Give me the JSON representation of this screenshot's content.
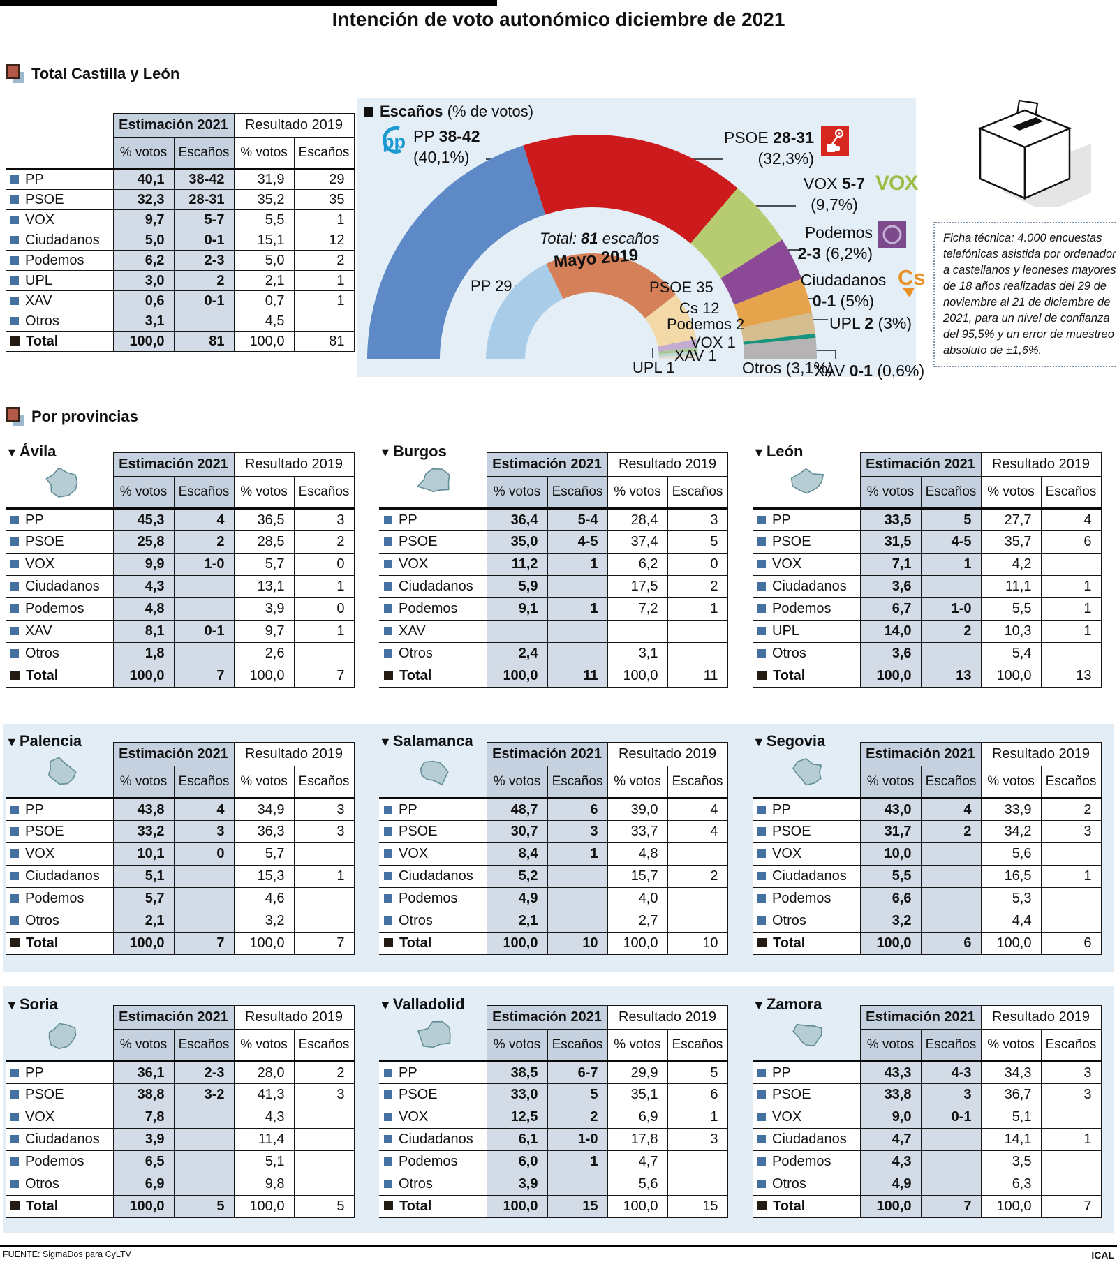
{
  "title": "Intención de voto autonómico diciembre de 2021",
  "sections": {
    "total_heading": "Total Castilla y León",
    "provinces_heading": "Por provincias"
  },
  "table_labels": {
    "est": "Estimación 2021",
    "res": "Resultado 2019",
    "votes": "% votos",
    "seats": "Escaños"
  },
  "total_table": {
    "rows": [
      [
        "PP",
        "40,1",
        "38-42",
        "31,9",
        "29"
      ],
      [
        "PSOE",
        "32,3",
        "28-31",
        "35,2",
        "35"
      ],
      [
        "VOX",
        "9,7",
        "5-7",
        "5,5",
        "1"
      ],
      [
        "Ciudadanos",
        "5,0",
        "0-1",
        "15,1",
        "12"
      ],
      [
        "Podemos",
        "6,2",
        "2-3",
        "5,0",
        "2"
      ],
      [
        "UPL",
        "3,0",
        "2",
        "2,1",
        "1"
      ],
      [
        "XAV",
        "0,6",
        "0-1",
        "0,7",
        "1"
      ],
      [
        "Otros",
        "3,1",
        "",
        "4,5",
        ""
      ],
      [
        "Total",
        "100,0",
        "81",
        "100,0",
        "81"
      ]
    ]
  },
  "chart_data": {
    "type": "donut",
    "shape": "semicircle",
    "title_bold": "Escaños",
    "title_rest": " (% de votos)",
    "center_note_prefix": "Total: ",
    "center_note_bold": "81",
    "center_note_suffix": " escaños",
    "inner_ring_title": "Mayo 2019",
    "rings": [
      {
        "name": "Estimación 2021",
        "unit": "percent of votes",
        "total": 100,
        "items": [
          {
            "party": "PP",
            "value": 40.1,
            "seats": "38-42",
            "pct_label": "(40,1%)",
            "color": "#5d89c6"
          },
          {
            "party": "PSOE",
            "value": 32.3,
            "seats": "28-31",
            "pct_label": "(32,3%)",
            "color": "#cd1a1c"
          },
          {
            "party": "VOX",
            "value": 9.7,
            "seats": "5-7",
            "pct_label": "(9,7%)",
            "color": "#b7cb70"
          },
          {
            "party": "Podemos",
            "value": 6.2,
            "seats": "2-3",
            "pct_label": "(6,2%)",
            "color": "#8c4a96"
          },
          {
            "party": "Ciudadanos",
            "value": 5.0,
            "seats": "0-1",
            "pct_label": "(5%)",
            "color": "#e5a44c"
          },
          {
            "party": "UPL",
            "value": 3.0,
            "seats": "2",
            "pct_label": "(3%)",
            "color": "#d6bd90"
          },
          {
            "party": "XAV",
            "value": 0.6,
            "seats": "0-1",
            "pct_label": "(0,6%)",
            "color": "#19947c"
          },
          {
            "party": "Otros",
            "value": 3.1,
            "seats": "",
            "pct_label": "(3,1%)",
            "color": "#b5b3b4"
          }
        ]
      },
      {
        "name": "Mayo 2019",
        "unit": "seats",
        "total": 81,
        "items": [
          {
            "party": "PP",
            "value": 29,
            "label": "PP 29",
            "color": "#a9cde9"
          },
          {
            "party": "PSOE",
            "value": 35,
            "label": "PSOE 35",
            "color": "#d58059"
          },
          {
            "party": "Cs",
            "value": 12,
            "label": "Cs 12",
            "color": "#f2d9a7"
          },
          {
            "party": "Podemos",
            "value": 2,
            "label": "Podemos 2",
            "color": "#c3abd1"
          },
          {
            "party": "VOX",
            "value": 1,
            "label": "VOX 1",
            "color": "#a8c79a"
          },
          {
            "party": "XAV",
            "value": 1,
            "label": "XAV 1",
            "color": "#bfd8d2"
          },
          {
            "party": "UPL",
            "value": 1,
            "label": "UPL 1",
            "color": "#e6e0d4"
          }
        ]
      }
    ]
  },
  "icons": {
    "pp": "pp-logo",
    "psoe": "psoe-fist-rose-logo",
    "vox": "vox-logo",
    "vox_text": "VOX",
    "podemos": "podemos-circle-logo",
    "cs": "ciudadanos-logo",
    "cs_text": "Cs",
    "ballot": "ballot-box-icon"
  },
  "ficha": "Ficha técnica: 4.000 encuestas telefónicas asistida por ordenador a castellanos y leoneses mayores de 18 años realizadas del 29 de noviembre al 21 de diciembre de 2021, para un nivel de confianza del 95,5% y un error de muestreo absoluto de ±1,6%.",
  "footer": {
    "source": "FUENTE: SigmaDos para CyLTV",
    "agency": "ICAL"
  },
  "provinces": [
    {
      "name": "Ávila",
      "table": {
        "rows": [
          [
            "PP",
            "45,3",
            "4",
            "36,5",
            "3"
          ],
          [
            "PSOE",
            "25,8",
            "2",
            "28,5",
            "2"
          ],
          [
            "VOX",
            "9,9",
            "1-0",
            "5,7",
            "0"
          ],
          [
            "Ciudadanos",
            "4,3",
            "",
            "13,1",
            "1"
          ],
          [
            "Podemos",
            "4,8",
            "",
            "3,9",
            "0"
          ],
          [
            "XAV",
            "8,1",
            "0-1",
            "9,7",
            "1"
          ],
          [
            "Otros",
            "1,8",
            "",
            "2,6",
            ""
          ],
          [
            "Total",
            "100,0",
            "7",
            "100,0",
            "7"
          ]
        ]
      }
    },
    {
      "name": "Burgos",
      "table": {
        "rows": [
          [
            "PP",
            "36,4",
            "5-4",
            "28,4",
            "3"
          ],
          [
            "PSOE",
            "35,0",
            "4-5",
            "37,4",
            "5"
          ],
          [
            "VOX",
            "11,2",
            "1",
            "6,2",
            "0"
          ],
          [
            "Ciudadanos",
            "5,9",
            "",
            "17,5",
            "2"
          ],
          [
            "Podemos",
            "9,1",
            "1",
            "7,2",
            "1"
          ],
          [
            "XAV",
            "",
            "",
            "",
            ""
          ],
          [
            "Otros",
            "2,4",
            "",
            "3,1",
            ""
          ],
          [
            "Total",
            "100,0",
            "11",
            "100,0",
            "11"
          ]
        ]
      }
    },
    {
      "name": "León",
      "table": {
        "rows": [
          [
            "PP",
            "33,5",
            "5",
            "27,7",
            "4"
          ],
          [
            "PSOE",
            "31,5",
            "4-5",
            "35,7",
            "6"
          ],
          [
            "VOX",
            "7,1",
            "1",
            "4,2",
            ""
          ],
          [
            "Ciudadanos",
            "3,6",
            "",
            "11,1",
            "1"
          ],
          [
            "Podemos",
            "6,7",
            "1-0",
            "5,5",
            "1"
          ],
          [
            "UPL",
            "14,0",
            "2",
            "10,3",
            "1"
          ],
          [
            "Otros",
            "3,6",
            "",
            "5,4",
            ""
          ],
          [
            "Total",
            "100,0",
            "13",
            "100,0",
            "13"
          ]
        ]
      }
    },
    {
      "name": "Palencia",
      "table": {
        "rows": [
          [
            "PP",
            "43,8",
            "4",
            "34,9",
            "3"
          ],
          [
            "PSOE",
            "33,2",
            "3",
            "36,3",
            "3"
          ],
          [
            "VOX",
            "10,1",
            "0",
            "5,7",
            ""
          ],
          [
            "Ciudadanos",
            "5,1",
            "",
            "15,3",
            "1"
          ],
          [
            "Podemos",
            "5,7",
            "",
            "4,6",
            ""
          ],
          [
            "Otros",
            "2,1",
            "",
            "3,2",
            ""
          ],
          [
            "Total",
            "100,0",
            "7",
            "100,0",
            "7"
          ]
        ]
      }
    },
    {
      "name": "Salamanca",
      "table": {
        "rows": [
          [
            "PP",
            "48,7",
            "6",
            "39,0",
            "4"
          ],
          [
            "PSOE",
            "30,7",
            "3",
            "33,7",
            "4"
          ],
          [
            "VOX",
            "8,4",
            "1",
            "4,8",
            ""
          ],
          [
            "Ciudadanos",
            "5,2",
            "",
            "15,7",
            "2"
          ],
          [
            "Podemos",
            "4,9",
            "",
            "4,0",
            ""
          ],
          [
            "Otros",
            "2,1",
            "",
            "2,7",
            ""
          ],
          [
            "Total",
            "100,0",
            "10",
            "100,0",
            "10"
          ]
        ]
      }
    },
    {
      "name": "Segovia",
      "table": {
        "rows": [
          [
            "PP",
            "43,0",
            "4",
            "33,9",
            "2"
          ],
          [
            "PSOE",
            "31,7",
            "2",
            "34,2",
            "3"
          ],
          [
            "VOX",
            "10,0",
            "",
            "5,6",
            ""
          ],
          [
            "Ciudadanos",
            "5,5",
            "",
            "16,5",
            "1"
          ],
          [
            "Podemos",
            "6,6",
            "",
            "5,3",
            ""
          ],
          [
            "Otros",
            "3,2",
            "",
            "4,4",
            ""
          ],
          [
            "Total",
            "100,0",
            "6",
            "100,0",
            "6"
          ]
        ]
      }
    },
    {
      "name": "Soria",
      "table": {
        "rows": [
          [
            "PP",
            "36,1",
            "2-3",
            "28,0",
            "2"
          ],
          [
            "PSOE",
            "38,8",
            "3-2",
            "41,3",
            "3"
          ],
          [
            "VOX",
            "7,8",
            "",
            "4,3",
            ""
          ],
          [
            "Ciudadanos",
            "3,9",
            "",
            "11,4",
            ""
          ],
          [
            "Podemos",
            "6,5",
            "",
            "5,1",
            ""
          ],
          [
            "Otros",
            "6,9",
            "",
            "9,8",
            ""
          ],
          [
            "Total",
            "100,0",
            "5",
            "100,0",
            "5"
          ]
        ]
      }
    },
    {
      "name": "Valladolid",
      "table": {
        "rows": [
          [
            "PP",
            "38,5",
            "6-7",
            "29,9",
            "5"
          ],
          [
            "PSOE",
            "33,0",
            "5",
            "35,1",
            "6"
          ],
          [
            "VOX",
            "12,5",
            "2",
            "6,9",
            "1"
          ],
          [
            "Ciudadanos",
            "6,1",
            "1-0",
            "17,8",
            "3"
          ],
          [
            "Podemos",
            "6,0",
            "1",
            "4,7",
            ""
          ],
          [
            "Otros",
            "3,9",
            "",
            "5,6",
            ""
          ],
          [
            "Total",
            "100,0",
            "15",
            "100,0",
            "15"
          ]
        ]
      }
    },
    {
      "name": "Zamora",
      "table": {
        "rows": [
          [
            "PP",
            "43,3",
            "4-3",
            "34,3",
            "3"
          ],
          [
            "PSOE",
            "33,8",
            "3",
            "36,7",
            "3"
          ],
          [
            "VOX",
            "9,0",
            "0-1",
            "5,1",
            ""
          ],
          [
            "Ciudadanos",
            "4,7",
            "",
            "14,1",
            "1"
          ],
          [
            "Podemos",
            "4,3",
            "",
            "3,5",
            ""
          ],
          [
            "Otros",
            "4,9",
            "",
            "6,3",
            ""
          ],
          [
            "Total",
            "100,0",
            "7",
            "100,0",
            "7"
          ]
        ]
      }
    }
  ]
}
